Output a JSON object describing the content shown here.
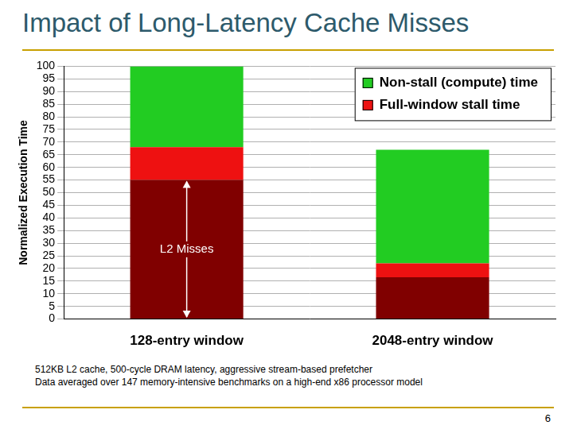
{
  "chart_data": {
    "type": "bar",
    "title": "Impact of Long-Latency Cache Misses",
    "y_label": "Normalized Execution Time",
    "categories": [
      "128-entry window",
      "2048-entry window"
    ],
    "series": [
      {
        "name": "L2 Misses",
        "color": "#800000",
        "values": [
          55,
          16.5
        ]
      },
      {
        "name": "Full-window stall time",
        "color": "#ee1111",
        "values": [
          13,
          5.5
        ]
      },
      {
        "name": "Non-stall (compute) time",
        "color": "#22cc22",
        "values": [
          32,
          45
        ]
      }
    ],
    "stacked": true,
    "ylim": [
      0,
      100
    ],
    "yticks": [
      0,
      5,
      10,
      15,
      20,
      25,
      30,
      35,
      40,
      45,
      50,
      55,
      60,
      65,
      70,
      75,
      80,
      85,
      90,
      95,
      100
    ],
    "grid": true,
    "legend": "upper right"
  },
  "footnotes": [
    "512KB L2 cache, 500-cycle DRAM latency, aggressive stream-based prefetcher",
    "Data averaged over 147 memory-intensive benchmarks on a high-end x86 processor model"
  ],
  "page_number": 6
}
